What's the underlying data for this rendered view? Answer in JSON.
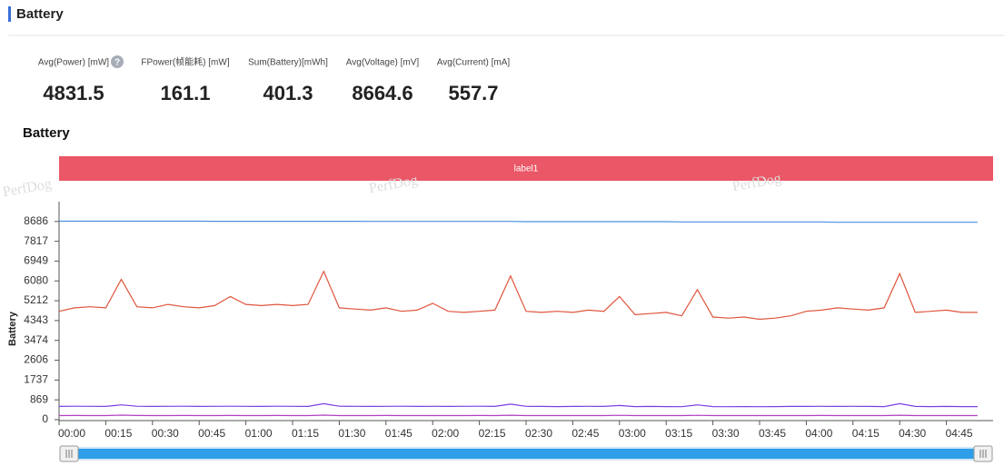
{
  "header": {
    "title": "Battery"
  },
  "metrics": [
    {
      "label": "Avg(Power) [mW]",
      "value": 4831.5
    },
    {
      "label": "FPower(帧能耗) [mW]",
      "value": 161.1
    },
    {
      "label": "Sum(Battery)[mWh]",
      "value": 401.3
    },
    {
      "label": "Avg(Voltage) [mV]",
      "value": 8664.6
    },
    {
      "label": "Avg(Current) [mA]",
      "value": 557.7
    }
  ],
  "watermark": "PerfDog",
  "chart_data": {
    "type": "line",
    "title": "Battery",
    "banner": "label1",
    "y_label": "Battery",
    "x": [
      0,
      5,
      10,
      15,
      20,
      25,
      30,
      35,
      40,
      45,
      50,
      55,
      60,
      65,
      70,
      75,
      80,
      85,
      90,
      95,
      100,
      105,
      110,
      115,
      120,
      125,
      130,
      135,
      140,
      145,
      150,
      155,
      160,
      165,
      170,
      175,
      180,
      185,
      190,
      195,
      200,
      205,
      210,
      215,
      220,
      225,
      230,
      235,
      240,
      245,
      250,
      255,
      260,
      265,
      270,
      275,
      280,
      285,
      290,
      295
    ],
    "series": [
      {
        "color": "#4a8fe0",
        "values": [
          8700,
          8700,
          8700,
          8700,
          8700,
          8700,
          8700,
          8700,
          8700,
          8700,
          8695,
          8695,
          8695,
          8695,
          8695,
          8695,
          8695,
          8695,
          8695,
          8695,
          8690,
          8690,
          8690,
          8690,
          8690,
          8690,
          8690,
          8690,
          8690,
          8690,
          8680,
          8680,
          8680,
          8680,
          8680,
          8680,
          8680,
          8680,
          8680,
          8680,
          8665,
          8665,
          8665,
          8665,
          8665,
          8665,
          8665,
          8665,
          8665,
          8665,
          8650,
          8650,
          8650,
          8650,
          8650,
          8650,
          8650,
          8650,
          8650,
          8650
        ]
      },
      {
        "color": "#e0553d",
        "values": [
          4750,
          4900,
          4950,
          4900,
          6150,
          4950,
          4900,
          5050,
          4950,
          4900,
          5000,
          5400,
          5050,
          5000,
          5050,
          5000,
          5050,
          6500,
          4900,
          4850,
          4800,
          4900,
          4750,
          4800,
          5100,
          4750,
          4700,
          4750,
          4800,
          6300,
          4750,
          4700,
          4750,
          4700,
          4800,
          4750,
          5400,
          4600,
          4650,
          4700,
          4550,
          5700,
          4500,
          4450,
          4500,
          4400,
          4450,
          4550,
          4750,
          4800,
          4900,
          4850,
          4800,
          4900,
          6400,
          4700,
          4750,
          4800,
          4700,
          4700
        ]
      },
      {
        "color": "#7b3fe4",
        "values": [
          580,
          590,
          585,
          580,
          650,
          590,
          580,
          585,
          590,
          580,
          585,
          590,
          585,
          580,
          590,
          585,
          580,
          700,
          590,
          585,
          580,
          585,
          590,
          580,
          585,
          580,
          585,
          590,
          580,
          680,
          585,
          580,
          575,
          580,
          585,
          580,
          620,
          575,
          580,
          575,
          570,
          650,
          575,
          570,
          575,
          570,
          575,
          580,
          580,
          585,
          580,
          585,
          580,
          575,
          700,
          580,
          575,
          580,
          575,
          575
        ]
      },
      {
        "color": "#b040c0",
        "values": [
          180,
          185,
          180,
          180,
          200,
          185,
          180,
          180,
          185,
          180,
          180,
          185,
          180,
          180,
          185,
          180,
          180,
          200,
          180,
          180,
          180,
          185,
          180,
          180,
          180,
          180,
          180,
          185,
          180,
          195,
          180,
          180,
          180,
          180,
          180,
          180,
          190,
          180,
          180,
          180,
          180,
          190,
          180,
          180,
          180,
          180,
          180,
          180,
          180,
          185,
          180,
          180,
          180,
          180,
          195,
          180,
          180,
          180,
          180,
          180
        ]
      }
    ],
    "xlim": [
      0,
      300
    ],
    "xticks": [
      {
        "value": 0,
        "label": "00:00"
      },
      {
        "value": 15,
        "label": "00:15"
      },
      {
        "value": 30,
        "label": "00:30"
      },
      {
        "value": 45,
        "label": "00:45"
      },
      {
        "value": 60,
        "label": "01:00"
      },
      {
        "value": 75,
        "label": "01:15"
      },
      {
        "value": 90,
        "label": "01:30"
      },
      {
        "value": 105,
        "label": "01:45"
      },
      {
        "value": 120,
        "label": "02:00"
      },
      {
        "value": 135,
        "label": "02:15"
      },
      {
        "value": 150,
        "label": "02:30"
      },
      {
        "value": 165,
        "label": "02:45"
      },
      {
        "value": 180,
        "label": "03:00"
      },
      {
        "value": 195,
        "label": "03:15"
      },
      {
        "value": 210,
        "label": "03:30"
      },
      {
        "value": 225,
        "label": "03:45"
      },
      {
        "value": 240,
        "label": "04:00"
      },
      {
        "value": 255,
        "label": "04:15"
      },
      {
        "value": 270,
        "label": "04:30"
      },
      {
        "value": 285,
        "label": "04:45"
      }
    ],
    "ylim": [
      0,
      9554
    ],
    "yticks": [
      0,
      869,
      1737,
      2606,
      3474,
      4343,
      5212,
      6080,
      6949,
      7817,
      8686
    ],
    "grid": false
  }
}
